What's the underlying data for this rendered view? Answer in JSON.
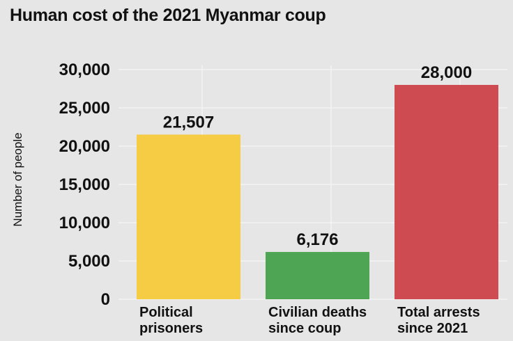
{
  "chart_data": {
    "type": "bar",
    "title": "Human cost of the 2021 Myanmar coup",
    "ylabel": "Number of people",
    "xlabel": "",
    "ylim": [
      0,
      30000
    ],
    "yticks": [
      0,
      5000,
      10000,
      15000,
      20000,
      25000,
      30000
    ],
    "ytick_labels": [
      "0",
      "5,000",
      "10,000",
      "15,000",
      "20,000",
      "25,000",
      "30,000"
    ],
    "grid": true,
    "categories": [
      [
        "Political",
        "prisoners"
      ],
      [
        "Civilian deaths",
        "since coup"
      ],
      [
        "Total arrests",
        "since 2021"
      ]
    ],
    "values": [
      21507,
      6176,
      28000
    ],
    "value_labels": [
      "21,507",
      "6,176",
      "28,000"
    ],
    "colors": [
      "#f5cc44",
      "#4ea553",
      "#cf4b52"
    ]
  }
}
